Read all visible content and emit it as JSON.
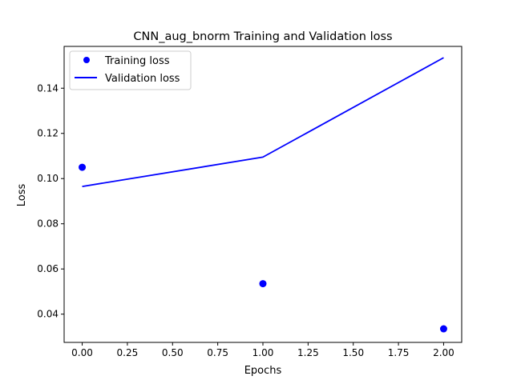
{
  "chart_data": {
    "type": "line",
    "title": "CNN_aug_bnorm Training and Validation loss",
    "xlabel": "Epochs",
    "ylabel": "Loss",
    "xlim": [
      -0.1,
      2.1
    ],
    "ylim": [
      0.0275,
      0.1585
    ],
    "xticks": [
      0.0,
      0.25,
      0.5,
      0.75,
      1.0,
      1.25,
      1.5,
      1.75,
      2.0
    ],
    "xtick_labels": [
      "0.00",
      "0.25",
      "0.50",
      "0.75",
      "1.00",
      "1.25",
      "1.50",
      "1.75",
      "2.00"
    ],
    "yticks": [
      0.04,
      0.06,
      0.08,
      0.1,
      0.12,
      0.14
    ],
    "ytick_labels": [
      "0.04",
      "0.06",
      "0.08",
      "0.10",
      "0.12",
      "0.14"
    ],
    "grid": false,
    "legend_position": "upper-left",
    "series": [
      {
        "name": "Training loss",
        "style": "markers",
        "color": "#0000ff",
        "x": [
          0,
          1,
          2
        ],
        "y": [
          0.105,
          0.0535,
          0.0335
        ]
      },
      {
        "name": "Validation loss",
        "style": "line",
        "color": "#0000ff",
        "x": [
          0,
          1,
          2
        ],
        "y": [
          0.0965,
          0.1095,
          0.1535
        ]
      }
    ]
  }
}
